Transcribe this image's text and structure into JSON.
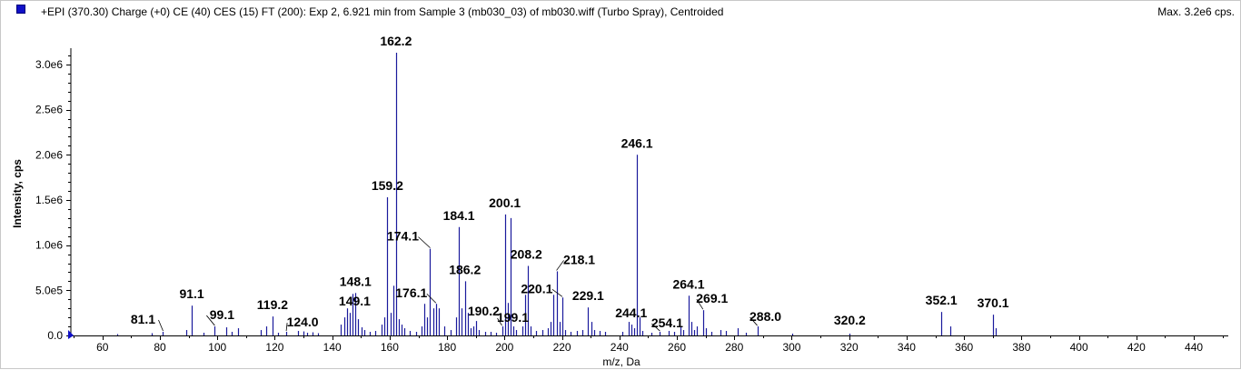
{
  "header": {
    "title": "+EPI (370.30) Charge (+0) CE (40) CES (15) FT (200): Exp 2, 6.921 min from Sample 3 (mb030_03) of mb030.wiff (Turbo Spray), Centroided",
    "max_label": "Max. 3.2e6 cps."
  },
  "colors": {
    "bar": "#1a1a9c",
    "swatch": "#1010c8"
  },
  "chart_data": {
    "type": "bar",
    "title": "",
    "xlabel": "m/z, Da",
    "ylabel": "Intensity, cps",
    "xlim": [
      49,
      452
    ],
    "ylim": [
      0,
      3150000
    ],
    "x_ticks": [
      60,
      80,
      100,
      120,
      140,
      160,
      180,
      200,
      220,
      240,
      260,
      280,
      300,
      320,
      340,
      360,
      380,
      400,
      420,
      440
    ],
    "y_ticks": [
      {
        "value": 0,
        "label": "0.0"
      },
      {
        "value": 500000,
        "label": "5.0e5"
      },
      {
        "value": 1000000,
        "label": "1.0e6"
      },
      {
        "value": 1500000,
        "label": "1.5e6"
      },
      {
        "value": 2000000,
        "label": "2.0e6"
      },
      {
        "value": 2500000,
        "label": "2.5e6"
      },
      {
        "value": 3000000,
        "label": "3.0e6"
      }
    ],
    "peaks": [
      {
        "mz": 65.1,
        "intensity": 15000
      },
      {
        "mz": 77.0,
        "intensity": 25000
      },
      {
        "mz": 81.1,
        "intensity": 40000
      },
      {
        "mz": 89.1,
        "intensity": 60000
      },
      {
        "mz": 91.1,
        "intensity": 330000
      },
      {
        "mz": 95.1,
        "intensity": 30000
      },
      {
        "mz": 99.1,
        "intensity": 100000
      },
      {
        "mz": 103.1,
        "intensity": 90000
      },
      {
        "mz": 105.1,
        "intensity": 40000
      },
      {
        "mz": 107.1,
        "intensity": 80000
      },
      {
        "mz": 115.1,
        "intensity": 60000
      },
      {
        "mz": 117.1,
        "intensity": 100000
      },
      {
        "mz": 119.2,
        "intensity": 210000
      },
      {
        "mz": 121.1,
        "intensity": 30000
      },
      {
        "mz": 124.0,
        "intensity": 40000
      },
      {
        "mz": 128.1,
        "intensity": 50000
      },
      {
        "mz": 130.1,
        "intensity": 45000
      },
      {
        "mz": 131.1,
        "intensity": 30000
      },
      {
        "mz": 133.1,
        "intensity": 35000
      },
      {
        "mz": 135.1,
        "intensity": 25000
      },
      {
        "mz": 143.1,
        "intensity": 120000
      },
      {
        "mz": 144.1,
        "intensity": 200000
      },
      {
        "mz": 145.1,
        "intensity": 300000
      },
      {
        "mz": 146.1,
        "intensity": 250000
      },
      {
        "mz": 147.1,
        "intensity": 460000
      },
      {
        "mz": 148.1,
        "intensity": 470000
      },
      {
        "mz": 149.1,
        "intensity": 180000
      },
      {
        "mz": 150.1,
        "intensity": 90000
      },
      {
        "mz": 151.1,
        "intensity": 60000
      },
      {
        "mz": 153.1,
        "intensity": 40000
      },
      {
        "mz": 155.1,
        "intensity": 50000
      },
      {
        "mz": 157.1,
        "intensity": 120000
      },
      {
        "mz": 158.1,
        "intensity": 200000
      },
      {
        "mz": 159.2,
        "intensity": 1530000
      },
      {
        "mz": 160.2,
        "intensity": 250000
      },
      {
        "mz": 161.2,
        "intensity": 550000
      },
      {
        "mz": 162.2,
        "intensity": 3130000
      },
      {
        "mz": 163.2,
        "intensity": 180000
      },
      {
        "mz": 164.2,
        "intensity": 120000
      },
      {
        "mz": 165.1,
        "intensity": 80000
      },
      {
        "mz": 167.1,
        "intensity": 50000
      },
      {
        "mz": 169.1,
        "intensity": 40000
      },
      {
        "mz": 171.1,
        "intensity": 100000
      },
      {
        "mz": 172.1,
        "intensity": 350000
      },
      {
        "mz": 173.1,
        "intensity": 200000
      },
      {
        "mz": 174.1,
        "intensity": 960000
      },
      {
        "mz": 175.1,
        "intensity": 300000
      },
      {
        "mz": 176.1,
        "intensity": 350000
      },
      {
        "mz": 177.1,
        "intensity": 300000
      },
      {
        "mz": 179.1,
        "intensity": 100000
      },
      {
        "mz": 181.1,
        "intensity": 60000
      },
      {
        "mz": 183.1,
        "intensity": 200000
      },
      {
        "mz": 184.1,
        "intensity": 1200000
      },
      {
        "mz": 185.1,
        "intensity": 300000
      },
      {
        "mz": 186.2,
        "intensity": 600000
      },
      {
        "mz": 187.1,
        "intensity": 250000
      },
      {
        "mz": 188.1,
        "intensity": 80000
      },
      {
        "mz": 189.1,
        "intensity": 100000
      },
      {
        "mz": 190.2,
        "intensity": 160000
      },
      {
        "mz": 191.1,
        "intensity": 60000
      },
      {
        "mz": 193.1,
        "intensity": 40000
      },
      {
        "mz": 195.1,
        "intensity": 40000
      },
      {
        "mz": 197.1,
        "intensity": 30000
      },
      {
        "mz": 199.1,
        "intensity": 100000
      },
      {
        "mz": 200.1,
        "intensity": 1340000
      },
      {
        "mz": 201.1,
        "intensity": 360000
      },
      {
        "mz": 202.1,
        "intensity": 1300000
      },
      {
        "mz": 203.1,
        "intensity": 100000
      },
      {
        "mz": 204.1,
        "intensity": 60000
      },
      {
        "mz": 206.1,
        "intensity": 100000
      },
      {
        "mz": 207.1,
        "intensity": 450000
      },
      {
        "mz": 208.2,
        "intensity": 770000
      },
      {
        "mz": 209.1,
        "intensity": 100000
      },
      {
        "mz": 211.1,
        "intensity": 50000
      },
      {
        "mz": 213.1,
        "intensity": 60000
      },
      {
        "mz": 215.1,
        "intensity": 80000
      },
      {
        "mz": 216.1,
        "intensity": 150000
      },
      {
        "mz": 217.1,
        "intensity": 450000
      },
      {
        "mz": 218.1,
        "intensity": 710000
      },
      {
        "mz": 219.1,
        "intensity": 150000
      },
      {
        "mz": 220.1,
        "intensity": 420000
      },
      {
        "mz": 221.1,
        "intensity": 60000
      },
      {
        "mz": 223.1,
        "intensity": 40000
      },
      {
        "mz": 225.1,
        "intensity": 50000
      },
      {
        "mz": 227.1,
        "intensity": 60000
      },
      {
        "mz": 229.1,
        "intensity": 310000
      },
      {
        "mz": 230.1,
        "intensity": 150000
      },
      {
        "mz": 231.1,
        "intensity": 60000
      },
      {
        "mz": 233.1,
        "intensity": 50000
      },
      {
        "mz": 235.1,
        "intensity": 40000
      },
      {
        "mz": 241.1,
        "intensity": 40000
      },
      {
        "mz": 243.1,
        "intensity": 150000
      },
      {
        "mz": 244.1,
        "intensity": 120000
      },
      {
        "mz": 245.1,
        "intensity": 80000
      },
      {
        "mz": 246.1,
        "intensity": 2000000
      },
      {
        "mz": 247.1,
        "intensity": 200000
      },
      {
        "mz": 248.1,
        "intensity": 50000
      },
      {
        "mz": 251.1,
        "intensity": 30000
      },
      {
        "mz": 254.1,
        "intensity": 40000
      },
      {
        "mz": 257.1,
        "intensity": 50000
      },
      {
        "mz": 259.1,
        "intensity": 40000
      },
      {
        "mz": 261.1,
        "intensity": 100000
      },
      {
        "mz": 262.1,
        "intensity": 60000
      },
      {
        "mz": 264.1,
        "intensity": 440000
      },
      {
        "mz": 265.1,
        "intensity": 150000
      },
      {
        "mz": 266.1,
        "intensity": 60000
      },
      {
        "mz": 267.1,
        "intensity": 100000
      },
      {
        "mz": 269.1,
        "intensity": 280000
      },
      {
        "mz": 270.1,
        "intensity": 80000
      },
      {
        "mz": 272.1,
        "intensity": 40000
      },
      {
        "mz": 275.1,
        "intensity": 60000
      },
      {
        "mz": 277.1,
        "intensity": 50000
      },
      {
        "mz": 281.1,
        "intensity": 80000
      },
      {
        "mz": 284.1,
        "intensity": 30000
      },
      {
        "mz": 288.0,
        "intensity": 100000
      },
      {
        "mz": 300.1,
        "intensity": 20000
      },
      {
        "mz": 320.2,
        "intensity": 20000
      },
      {
        "mz": 352.1,
        "intensity": 260000
      },
      {
        "mz": 355.1,
        "intensity": 100000
      },
      {
        "mz": 370.1,
        "intensity": 230000
      },
      {
        "mz": 371.1,
        "intensity": 80000
      }
    ],
    "labels": [
      {
        "text": "81.1",
        "mz": 81.1
      },
      {
        "text": "91.1",
        "mz": 91.1
      },
      {
        "text": "99.1",
        "mz": 99.1
      },
      {
        "text": "119.2",
        "mz": 119.2
      },
      {
        "text": "124.0",
        "mz": 124.0
      },
      {
        "text": "148.1",
        "mz": 148.1
      },
      {
        "text": "149.1",
        "mz": 149.1
      },
      {
        "text": "159.2",
        "mz": 159.2
      },
      {
        "text": "162.2",
        "mz": 162.2
      },
      {
        "text": "174.1",
        "mz": 174.1
      },
      {
        "text": "176.1",
        "mz": 176.1
      },
      {
        "text": "184.1",
        "mz": 184.1
      },
      {
        "text": "186.2",
        "mz": 186.2
      },
      {
        "text": "190.2",
        "mz": 190.2
      },
      {
        "text": "199.1",
        "mz": 199.1
      },
      {
        "text": "200.1",
        "mz": 200.1
      },
      {
        "text": "208.2",
        "mz": 208.2
      },
      {
        "text": "218.1",
        "mz": 218.1
      },
      {
        "text": "220.1",
        "mz": 220.1
      },
      {
        "text": "229.1",
        "mz": 229.1
      },
      {
        "text": "244.1",
        "mz": 244.1
      },
      {
        "text": "246.1",
        "mz": 246.1
      },
      {
        "text": "254.1",
        "mz": 254.1
      },
      {
        "text": "264.1",
        "mz": 264.1
      },
      {
        "text": "269.1",
        "mz": 269.1
      },
      {
        "text": "288.0",
        "mz": 288.0
      },
      {
        "text": "320.2",
        "mz": 320.2
      },
      {
        "text": "352.1",
        "mz": 352.1
      },
      {
        "text": "370.1",
        "mz": 370.1
      }
    ]
  }
}
